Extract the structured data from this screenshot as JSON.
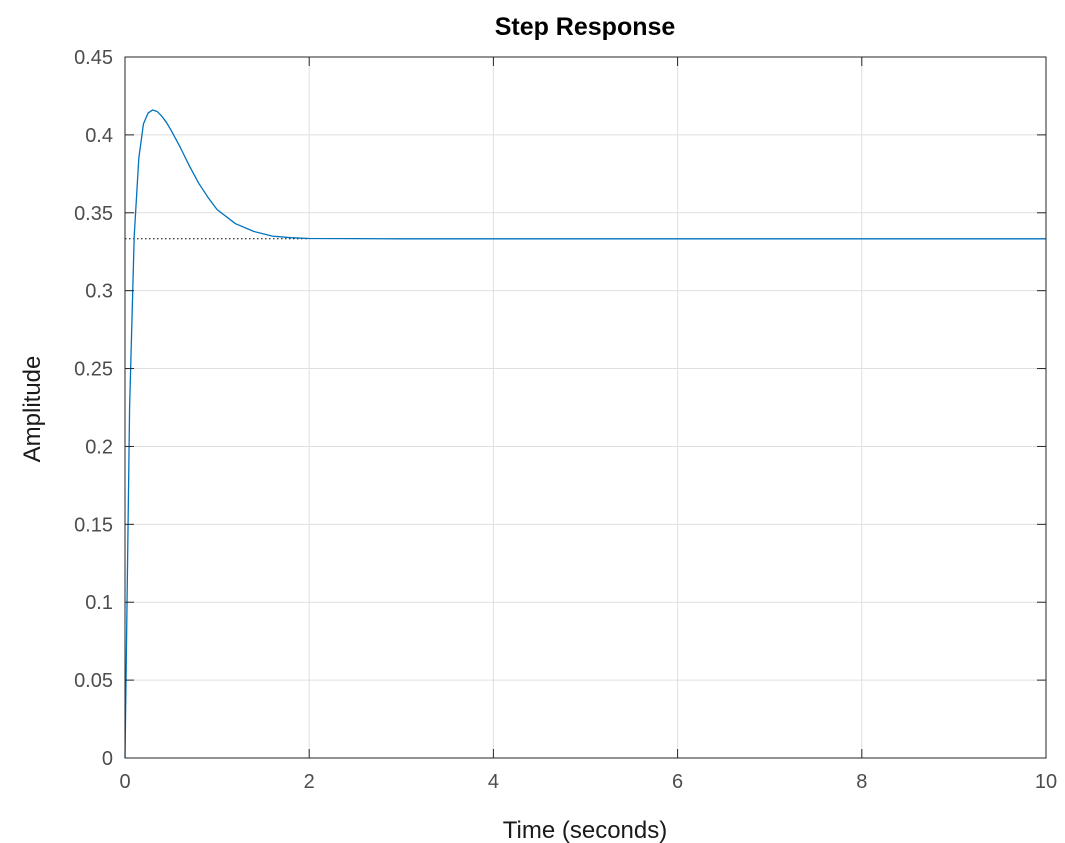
{
  "chart_data": {
    "type": "line",
    "title": "Step Response",
    "xlabel": "Time (seconds)",
    "ylabel": "Amplitude",
    "xlim": [
      0,
      10
    ],
    "ylim": [
      0,
      0.45
    ],
    "xticks": [
      0,
      2,
      4,
      6,
      8,
      10
    ],
    "xtick_labels": [
      "0",
      "2",
      "4",
      "6",
      "8",
      "10"
    ],
    "yticks": [
      0,
      0.05,
      0.1,
      0.15,
      0.2,
      0.25,
      0.3,
      0.35,
      0.4,
      0.45
    ],
    "ytick_labels": [
      "0",
      "0.05",
      "0.1",
      "0.15",
      "0.2",
      "0.25",
      "0.3",
      "0.35",
      "0.4",
      "0.45"
    ],
    "grid": true,
    "series": [
      {
        "color": "#0072bd",
        "style": "solid",
        "x": [
          0,
          0.05,
          0.1,
          0.15,
          0.2,
          0.25,
          0.3,
          0.35,
          0.4,
          0.45,
          0.5,
          0.6,
          0.7,
          0.8,
          0.9,
          1.0,
          1.2,
          1.4,
          1.6,
          1.8,
          2.0,
          2.5,
          3,
          4,
          5,
          6,
          7,
          8,
          9,
          10
        ],
        "y": [
          0,
          0.225,
          0.335,
          0.385,
          0.407,
          0.414,
          0.416,
          0.415,
          0.412,
          0.408,
          0.403,
          0.392,
          0.38,
          0.369,
          0.36,
          0.352,
          0.343,
          0.338,
          0.335,
          0.334,
          0.3335,
          0.3334,
          0.3333,
          0.3333,
          0.3333,
          0.3333,
          0.3333,
          0.3333,
          0.3333,
          0.3333
        ]
      }
    ],
    "steady_state": {
      "value": 0.3333,
      "style": "dotted",
      "color": "#000000",
      "x_end": 2.0
    },
    "background": "#ffffff",
    "grid_color": "#dfdfdf",
    "axes_color": "#262626"
  }
}
